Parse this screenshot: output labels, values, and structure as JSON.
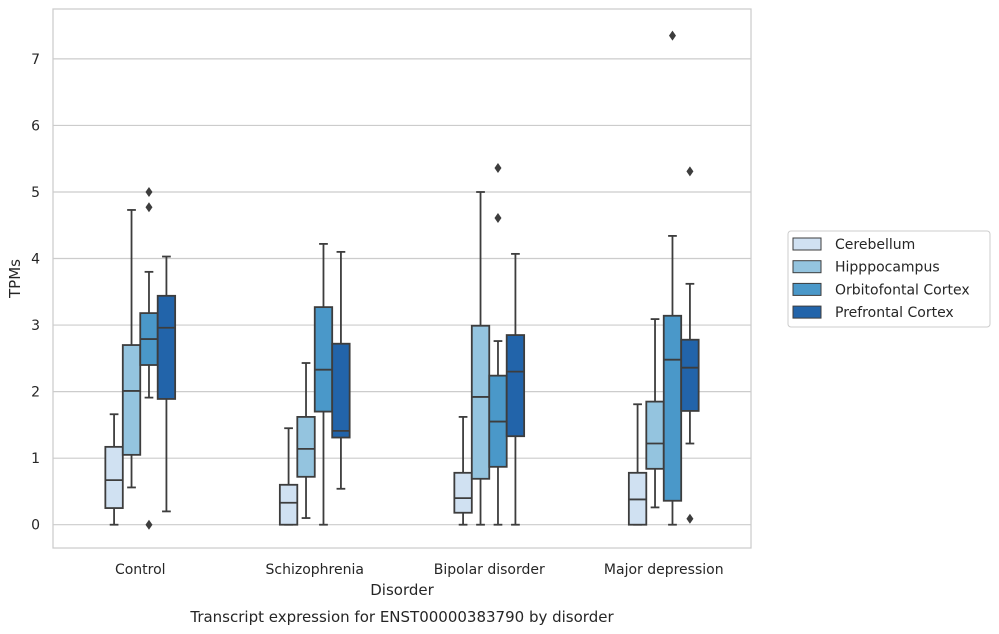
{
  "chart_data": {
    "type": "boxplot",
    "xlabel": "Disorder",
    "ylabel": "TPMs",
    "caption": "Transcript expression for ENST00000383790 by disorder",
    "ylim": [
      -0.35,
      7.75
    ],
    "yticks": [
      0,
      1,
      2,
      3,
      4,
      5,
      6,
      7
    ],
    "grid": true,
    "legend_position": "right",
    "categories": [
      "Control",
      "Schizophrenia",
      "Bipolar disorder",
      "Major depression"
    ],
    "series": [
      {
        "name": "Cerebellum",
        "color": "#d0e1f2",
        "boxes": [
          {
            "whislo": 0.0,
            "q1": 0.25,
            "med": 0.67,
            "q3": 1.17,
            "whishi": 1.66,
            "fliers": []
          },
          {
            "whislo": 0.0,
            "q1": 0.0,
            "med": 0.33,
            "q3": 0.6,
            "whishi": 1.45,
            "fliers": []
          },
          {
            "whislo": 0.0,
            "q1": 0.18,
            "med": 0.4,
            "q3": 0.78,
            "whishi": 1.62,
            "fliers": []
          },
          {
            "whislo": 0.0,
            "q1": 0.0,
            "med": 0.38,
            "q3": 0.78,
            "whishi": 1.81,
            "fliers": []
          }
        ]
      },
      {
        "name": "Hipppocampus",
        "color": "#94c4df",
        "boxes": [
          {
            "whislo": 0.56,
            "q1": 1.05,
            "med": 2.01,
            "q3": 2.7,
            "whishi": 4.73,
            "fliers": []
          },
          {
            "whislo": 0.1,
            "q1": 0.72,
            "med": 1.14,
            "q3": 1.62,
            "whishi": 2.43,
            "fliers": []
          },
          {
            "whislo": 0.0,
            "q1": 0.69,
            "med": 1.92,
            "q3": 2.99,
            "whishi": 5.0,
            "fliers": []
          },
          {
            "whislo": 0.26,
            "q1": 0.84,
            "med": 1.22,
            "q3": 1.85,
            "whishi": 3.09,
            "fliers": []
          }
        ]
      },
      {
        "name": "Orbitofontal Cortex",
        "color": "#4a98c9",
        "boxes": [
          {
            "whislo": 1.91,
            "q1": 2.4,
            "med": 2.79,
            "q3": 3.18,
            "whishi": 3.8,
            "fliers": [
              5.0,
              4.77,
              0.0
            ]
          },
          {
            "whislo": 0.0,
            "q1": 1.7,
            "med": 2.33,
            "q3": 3.27,
            "whishi": 4.22,
            "fliers": []
          },
          {
            "whislo": 0.0,
            "q1": 0.87,
            "med": 1.55,
            "q3": 2.24,
            "whishi": 2.76,
            "fliers": [
              5.36,
              4.61
            ]
          },
          {
            "whislo": 0.0,
            "q1": 0.36,
            "med": 2.48,
            "q3": 3.14,
            "whishi": 4.34,
            "fliers": [
              7.35
            ]
          }
        ]
      },
      {
        "name": "Prefrontal Cortex",
        "color": "#2264aa",
        "boxes": [
          {
            "whislo": 0.2,
            "q1": 1.89,
            "med": 2.96,
            "q3": 3.44,
            "whishi": 4.03,
            "fliers": []
          },
          {
            "whislo": 0.54,
            "q1": 1.31,
            "med": 1.41,
            "q3": 2.72,
            "whishi": 4.1,
            "fliers": []
          },
          {
            "whislo": 0.0,
            "q1": 1.33,
            "med": 2.3,
            "q3": 2.85,
            "whishi": 4.07,
            "fliers": []
          },
          {
            "whislo": 1.22,
            "q1": 1.71,
            "med": 2.36,
            "q3": 2.78,
            "whishi": 3.62,
            "fliers": [
              5.31,
              0.09
            ]
          }
        ]
      }
    ]
  }
}
